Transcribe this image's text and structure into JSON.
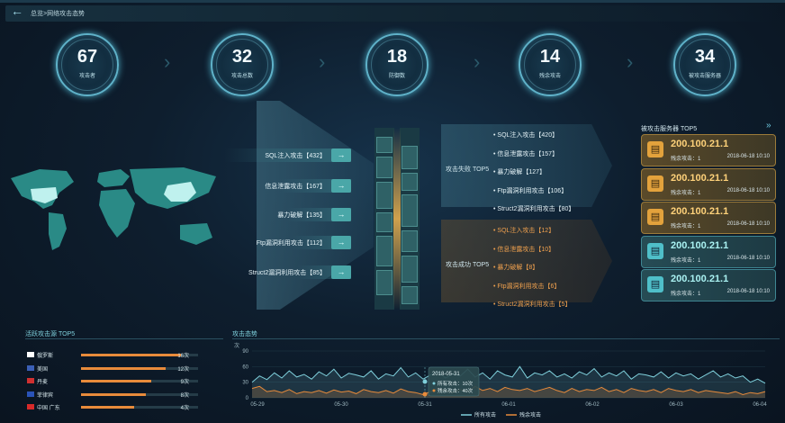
{
  "header": {
    "breadcrumb": "总览>网络攻击态势"
  },
  "stats": [
    {
      "value": "67",
      "label": "攻击者"
    },
    {
      "value": "32",
      "label": "攻击总数"
    },
    {
      "value": "18",
      "label": "防御数"
    },
    {
      "value": "14",
      "label": "残余攻击"
    },
    {
      "value": "34",
      "label": "被攻击服务器"
    }
  ],
  "attack_types": [
    {
      "label": "SQL注入攻击【432】",
      "pct": 1.0
    },
    {
      "label": "信息泄露攻击【167】",
      "pct": 0.39
    },
    {
      "label": "暴力破解【135】",
      "pct": 0.31
    },
    {
      "label": "Ftp漏洞利用攻击【112】",
      "pct": 0.26
    },
    {
      "label": "Struct2漏洞利用攻击【85】",
      "pct": 0.2
    }
  ],
  "fail_panel": {
    "title": "攻击失败 TOP5",
    "items": [
      "SQL注入攻击【420】",
      "信息泄露攻击【157】",
      "暴力破解【127】",
      "Ftp漏洞利用攻击【106】",
      "Struct2漏洞利用攻击【80】"
    ]
  },
  "success_panel": {
    "title": "攻击成功 TOP5",
    "items": [
      "SQL注入攻击【12】",
      "信息泄露攻击【10】",
      "暴力破解【8】",
      "Ftp漏洞利用攻击【6】",
      "Struct2漏洞利用攻击【5】"
    ]
  },
  "servers": {
    "title": "被攻击服务器 TOP5",
    "list": [
      {
        "ip": "200.100.21.1",
        "meta": "残余攻击：1",
        "date": "2018-06-18  10:10",
        "status": "warn"
      },
      {
        "ip": "200.100.21.1",
        "meta": "残余攻击：1",
        "date": "2018-06-18  10:10",
        "status": "warn"
      },
      {
        "ip": "200.100.21.1",
        "meta": "残余攻击：1",
        "date": "2018-06-18  10:10",
        "status": "warn"
      },
      {
        "ip": "200.100.21.1",
        "meta": "残余攻击：1",
        "date": "2018-06-18  10:10",
        "status": "norm"
      },
      {
        "ip": "200.100.21.1",
        "meta": "残余攻击：1",
        "date": "2018-06-18  10:10",
        "status": "norm"
      }
    ]
  },
  "sources": {
    "title": "活跃攻击源 TOP5",
    "list": [
      {
        "name": "俄罗斯",
        "count": "16次",
        "pct": 0.85,
        "flag": "#ffffff"
      },
      {
        "name": "美国",
        "count": "12次",
        "pct": 0.72,
        "flag": "#3b5fb5"
      },
      {
        "name": "丹麦",
        "count": "9次",
        "pct": 0.6,
        "flag": "#d03030"
      },
      {
        "name": "菲律宾",
        "count": "8次",
        "pct": 0.55,
        "flag": "#2a53b8"
      },
      {
        "name": "中国 广东",
        "count": "4次",
        "pct": 0.45,
        "flag": "#d82a2a"
      }
    ]
  },
  "chart_data": {
    "type": "line",
    "title": "攻击态势",
    "ylabel": "次",
    "ylim": [
      0,
      90
    ],
    "yticks": [
      "0",
      "30",
      "60",
      "90"
    ],
    "xticks": [
      "05-29",
      "05-30",
      "05-31",
      "06-01",
      "06-02",
      "06-03",
      "06-04"
    ],
    "legend": [
      "所有攻击",
      "残余攻击"
    ],
    "tooltip": {
      "date": "2018-05-31",
      "all": "所有攻击：10次",
      "residual": "残余攻击：40次"
    },
    "series": [
      {
        "name": "所有攻击",
        "color": "#7fd0dc",
        "values": [
          30,
          42,
          35,
          48,
          38,
          52,
          40,
          45,
          36,
          50,
          42,
          55,
          38,
          47,
          44,
          40,
          52,
          36,
          46,
          42,
          58,
          40,
          48,
          36,
          44,
          50,
          38,
          46,
          42,
          55,
          40,
          48,
          36,
          52,
          44,
          40,
          60,
          38,
          48,
          44,
          52,
          40,
          46,
          38,
          50,
          44,
          56,
          40,
          48,
          42,
          52,
          36,
          46,
          44,
          40,
          50,
          38,
          48,
          42,
          46,
          36,
          44,
          52,
          40,
          46,
          38,
          42,
          30,
          36,
          28
        ]
      },
      {
        "name": "残余攻击",
        "color": "#e88b3b",
        "values": [
          18,
          22,
          12,
          14,
          10,
          16,
          8,
          12,
          10,
          14,
          9,
          15,
          11,
          13,
          8,
          16,
          12,
          10,
          14,
          9,
          17,
          12,
          10,
          6,
          12,
          18,
          14,
          10,
          16,
          12,
          22,
          14,
          18,
          12,
          20,
          16,
          14,
          18,
          12,
          16,
          20,
          14,
          10,
          18,
          12,
          16,
          14,
          20,
          12,
          16,
          10,
          18,
          14,
          12,
          16,
          10,
          18,
          14,
          12,
          16,
          10,
          14,
          12,
          10,
          8,
          12,
          6,
          10,
          8,
          12
        ]
      }
    ]
  }
}
